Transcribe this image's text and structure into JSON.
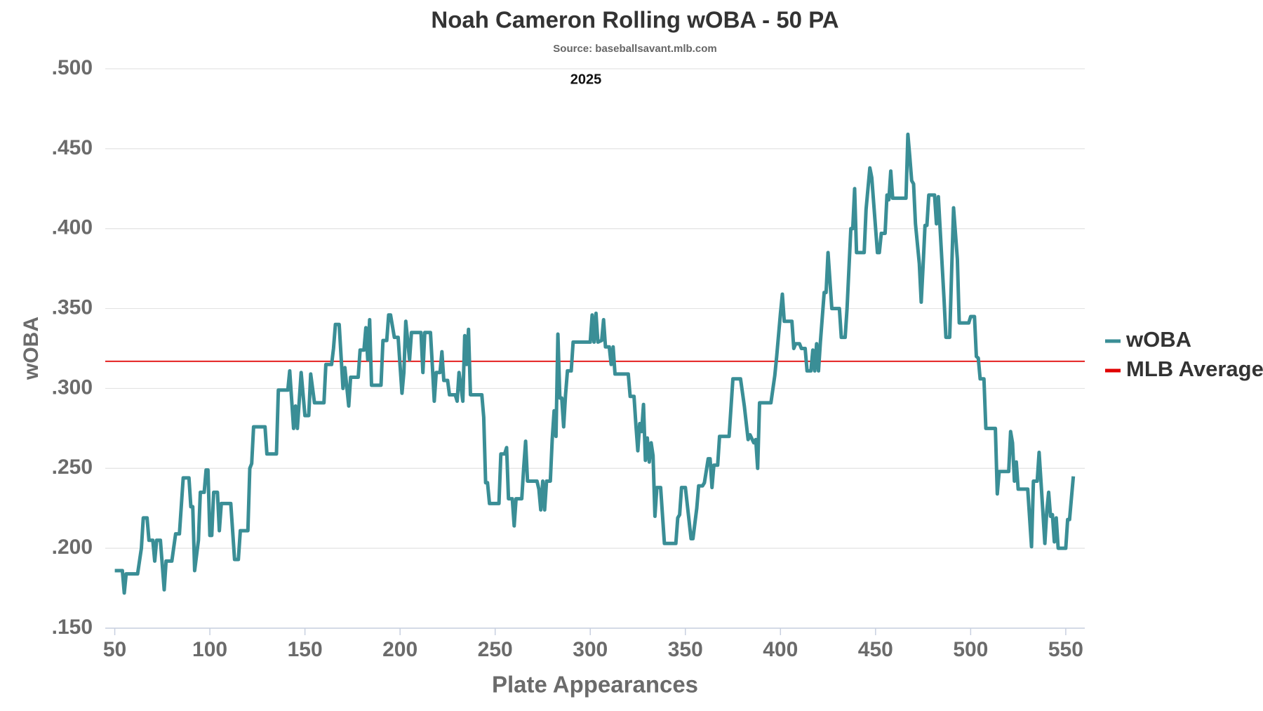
{
  "chart_data": {
    "type": "line",
    "title": "Noah Cameron Rolling wOBA - 50 PA",
    "subtitle": "Source: baseballsavant.mlb.com",
    "annotation": "2025",
    "x_label": "Plate Appearances",
    "y_label": "wOBA",
    "xlim": [
      45,
      560
    ],
    "xticks": [
      50,
      100,
      150,
      200,
      250,
      300,
      350,
      400,
      450,
      500,
      550
    ],
    "ylim": [
      0.15,
      0.5
    ],
    "yticks": [
      {
        "value": 0.15,
        "label": ".150"
      },
      {
        "value": 0.2,
        "label": ".200"
      },
      {
        "value": 0.25,
        "label": ".250"
      },
      {
        "value": 0.3,
        "label": ".300"
      },
      {
        "value": 0.35,
        "label": ".350"
      },
      {
        "value": 0.4,
        "label": ".400"
      },
      {
        "value": 0.45,
        "label": ".450"
      },
      {
        "value": 0.5,
        "label": ".500"
      }
    ],
    "grid": true,
    "legend": "right",
    "series": [
      {
        "name": "wOBA",
        "color": "#3a8e96",
        "x": [
          50,
          54,
          55,
          56,
          62,
          64,
          65,
          67,
          68,
          70,
          71,
          72,
          74,
          76,
          77,
          80,
          82,
          84,
          86,
          89,
          90,
          91,
          92,
          94,
          95,
          97,
          98,
          99,
          100,
          101,
          102,
          104,
          105,
          106,
          111,
          113,
          115,
          116,
          120,
          121,
          122,
          123,
          129,
          130,
          135,
          136,
          141,
          142,
          144,
          145,
          146,
          148,
          150,
          152,
          153,
          155,
          160,
          161,
          164,
          165,
          166,
          168,
          170,
          171,
          173,
          174,
          178,
          179,
          181,
          182,
          183,
          184,
          185,
          190,
          191,
          193,
          194,
          195,
          197,
          199,
          201,
          202,
          203,
          205,
          206,
          211,
          212,
          213,
          216,
          217,
          218,
          219,
          221,
          222,
          223,
          225,
          226,
          229,
          230,
          231,
          233,
          234,
          235,
          236,
          237,
          243,
          244,
          245,
          246,
          247,
          252,
          253,
          255,
          256,
          257,
          259,
          260,
          261,
          264,
          265,
          266,
          267,
          272,
          273,
          274,
          275,
          276,
          277,
          279,
          280,
          281,
          282,
          283,
          284,
          285,
          286,
          287,
          288,
          290,
          291,
          300,
          301,
          302,
          303,
          304,
          306,
          307,
          308,
          310,
          311,
          312,
          313,
          320,
          321,
          323,
          324,
          325,
          326,
          327,
          328,
          329,
          330,
          331,
          332,
          333,
          334,
          335,
          337,
          339,
          345,
          346,
          347,
          348,
          350,
          353,
          354,
          356,
          357,
          359,
          360,
          362,
          363,
          364,
          365,
          367,
          368,
          373,
          375,
          379,
          381,
          383,
          384,
          386,
          387,
          388,
          389,
          395,
          397,
          398,
          400,
          401,
          402,
          406,
          407,
          408,
          410,
          411,
          413,
          414,
          416,
          417,
          418,
          419,
          420,
          421,
          423,
          424,
          425,
          427,
          431,
          432,
          434,
          435,
          437,
          438,
          439,
          440,
          444,
          445,
          447,
          448,
          451,
          452,
          453,
          455,
          456,
          457,
          458,
          459,
          466,
          467,
          468,
          469,
          470,
          471,
          473,
          474,
          475,
          476,
          477,
          478,
          481,
          482,
          483,
          486,
          487,
          489,
          490,
          491,
          493,
          494,
          499,
          500,
          502,
          503,
          504,
          505,
          507,
          508,
          513,
          514,
          515,
          520,
          521,
          522,
          523,
          524,
          525,
          530,
          532,
          533,
          535,
          536,
          537,
          539,
          540,
          541,
          542,
          543,
          544,
          545,
          546,
          550,
          551,
          552,
          554
        ],
        "values": [
          0.186,
          0.186,
          0.172,
          0.184,
          0.184,
          0.2,
          0.219,
          0.219,
          0.205,
          0.205,
          0.192,
          0.205,
          0.205,
          0.174,
          0.192,
          0.192,
          0.209,
          0.209,
          0.244,
          0.244,
          0.226,
          0.226,
          0.186,
          0.205,
          0.235,
          0.235,
          0.249,
          0.249,
          0.208,
          0.208,
          0.235,
          0.235,
          0.211,
          0.228,
          0.228,
          0.193,
          0.193,
          0.211,
          0.211,
          0.25,
          0.253,
          0.276,
          0.276,
          0.259,
          0.259,
          0.299,
          0.299,
          0.311,
          0.275,
          0.289,
          0.275,
          0.31,
          0.283,
          0.283,
          0.309,
          0.291,
          0.291,
          0.315,
          0.315,
          0.325,
          0.34,
          0.34,
          0.3,
          0.313,
          0.289,
          0.307,
          0.307,
          0.324,
          0.324,
          0.338,
          0.318,
          0.343,
          0.302,
          0.302,
          0.33,
          0.33,
          0.346,
          0.346,
          0.332,
          0.332,
          0.297,
          0.31,
          0.342,
          0.318,
          0.335,
          0.335,
          0.31,
          0.335,
          0.335,
          0.314,
          0.292,
          0.31,
          0.31,
          0.323,
          0.305,
          0.305,
          0.296,
          0.296,
          0.292,
          0.31,
          0.292,
          0.333,
          0.315,
          0.337,
          0.296,
          0.296,
          0.282,
          0.241,
          0.241,
          0.228,
          0.228,
          0.259,
          0.259,
          0.263,
          0.231,
          0.231,
          0.214,
          0.231,
          0.231,
          0.25,
          0.267,
          0.242,
          0.242,
          0.237,
          0.224,
          0.242,
          0.224,
          0.242,
          0.242,
          0.268,
          0.286,
          0.27,
          0.334,
          0.294,
          0.294,
          0.276,
          0.296,
          0.311,
          0.311,
          0.329,
          0.329,
          0.346,
          0.329,
          0.347,
          0.329,
          0.33,
          0.343,
          0.326,
          0.326,
          0.315,
          0.326,
          0.309,
          0.309,
          0.295,
          0.295,
          0.277,
          0.261,
          0.278,
          0.273,
          0.29,
          0.255,
          0.269,
          0.254,
          0.266,
          0.258,
          0.22,
          0.238,
          0.238,
          0.203,
          0.203,
          0.219,
          0.221,
          0.238,
          0.238,
          0.206,
          0.206,
          0.225,
          0.239,
          0.239,
          0.241,
          0.256,
          0.256,
          0.238,
          0.252,
          0.252,
          0.27,
          0.27,
          0.306,
          0.306,
          0.289,
          0.268,
          0.271,
          0.266,
          0.268,
          0.25,
          0.291,
          0.291,
          0.308,
          0.32,
          0.347,
          0.359,
          0.342,
          0.342,
          0.325,
          0.328,
          0.328,
          0.325,
          0.325,
          0.311,
          0.311,
          0.324,
          0.311,
          0.328,
          0.311,
          0.329,
          0.36,
          0.36,
          0.385,
          0.35,
          0.35,
          0.332,
          0.332,
          0.35,
          0.4,
          0.4,
          0.425,
          0.385,
          0.385,
          0.412,
          0.438,
          0.432,
          0.385,
          0.385,
          0.397,
          0.397,
          0.421,
          0.418,
          0.436,
          0.419,
          0.419,
          0.459,
          0.445,
          0.43,
          0.428,
          0.403,
          0.378,
          0.354,
          0.377,
          0.402,
          0.402,
          0.421,
          0.421,
          0.403,
          0.42,
          0.356,
          0.332,
          0.332,
          0.374,
          0.413,
          0.381,
          0.341,
          0.341,
          0.345,
          0.345,
          0.32,
          0.319,
          0.306,
          0.306,
          0.275,
          0.275,
          0.234,
          0.248,
          0.248,
          0.273,
          0.266,
          0.242,
          0.254,
          0.237,
          0.237,
          0.201,
          0.242,
          0.242,
          0.26,
          0.241,
          0.203,
          0.223,
          0.235,
          0.22,
          0.221,
          0.204,
          0.219,
          0.2,
          0.2,
          0.218,
          0.218,
          0.245
        ]
      }
    ],
    "reference_line": {
      "name": "MLB Average",
      "value": 0.317,
      "color": "#e00000"
    }
  }
}
